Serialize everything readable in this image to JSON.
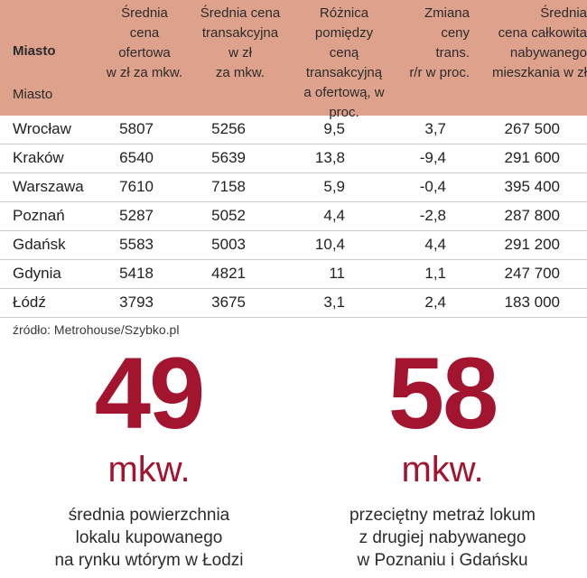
{
  "table": {
    "header": {
      "miasto_bold": "Miasto",
      "miasto_sub": "Miasto",
      "col1": "Średnia\ncena\nofertowa\nw zł za mkw.",
      "col2": "Średnia cena\ntransakcyjna\nw zł\nza mkw.",
      "col3": "Różnica\npomiędzy\nceną\ntransakcyjną\na ofertową, w proc.",
      "col4": "Zmiana\nceny\ntrans.\nr/r w proc.",
      "col5": "Średnia\ncena całkowita\nnabywanego\nmieszkania w zł"
    },
    "rows": [
      {
        "city": "Wrocław",
        "offer": "5807",
        "transaction": "5256",
        "diff": "9,5",
        "change": "3,7",
        "total": "267 500"
      },
      {
        "city": "Kraków",
        "offer": "6540",
        "transaction": "5639",
        "diff": "13,8",
        "change": "-9,4",
        "total": "291 600"
      },
      {
        "city": "Warszawa",
        "offer": "7610",
        "transaction": "7158",
        "diff": "5,9",
        "change": "-0,4",
        "total": "395 400"
      },
      {
        "city": "Poznań",
        "offer": "5287",
        "transaction": "5052",
        "diff": "4,4",
        "change": "-2,8",
        "total": "287 800"
      },
      {
        "city": "Gdańsk",
        "offer": "5583",
        "transaction": "5003",
        "diff": "10,4",
        "change": "4,4",
        "total": "291 200"
      },
      {
        "city": "Gdynia",
        "offer": "5418",
        "transaction": "4821",
        "diff": "11",
        "change": "1,1",
        "total": "247 700"
      },
      {
        "city": "Łódź",
        "offer": "3793",
        "transaction": "3675",
        "diff": "3,1",
        "change": "2,4",
        "total": "183 000"
      }
    ]
  },
  "source": "źródło: Metrohouse/Szybko.pl",
  "stats": [
    {
      "value": "49",
      "unit": "mkw.",
      "description": "średnia powierzchnia\nlokalu kupowanego\nna rynku wtórym w Łodzi"
    },
    {
      "value": "58",
      "unit": "mkw.",
      "description": "przeciętny metraż lokum\nz drugiej nabywanego\nw Poznaniu i Gdańsku"
    }
  ],
  "colors": {
    "header_bg": "#dea18c",
    "accent": "#a3142f"
  }
}
